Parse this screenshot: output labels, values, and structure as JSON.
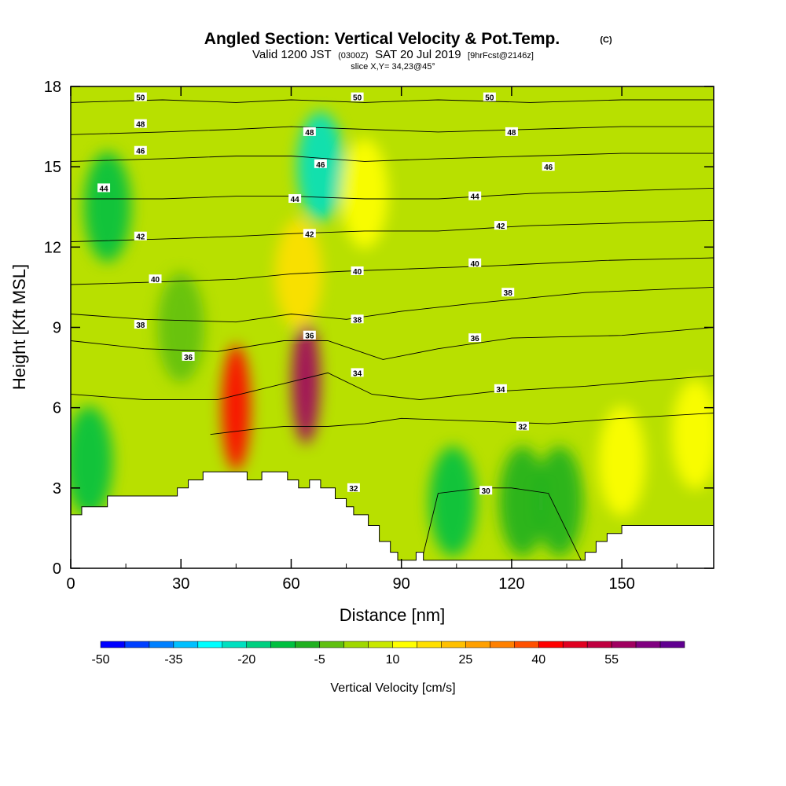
{
  "chart_data": {
    "type": "heatmap",
    "title": "Angled Section: Vertical Velocity & Pot.Temp.",
    "title_unit": "(C)",
    "subtitle_parts": [
      "Valid 1200 JST",
      "(0300Z)",
      "SAT 20 Jul 2019",
      "[9hrFcst@2146z]"
    ],
    "slice_label": "slice X,Y= 34,23@45°",
    "xlabel": "Distance [nm]",
    "ylabel": "Height [Kft MSL]",
    "xlim": [
      0,
      175
    ],
    "ylim": [
      0,
      18
    ],
    "x_ticks": [
      0,
      30,
      60,
      90,
      120,
      150
    ],
    "y_ticks": [
      0,
      3,
      6,
      9,
      12,
      15,
      18
    ],
    "colorbar": {
      "label": "Vertical Velocity [cm/s]",
      "ticks": [
        -50,
        -35,
        -20,
        -5,
        10,
        25,
        40,
        55
      ],
      "colors": [
        "#0000ff",
        "#0040ff",
        "#0080ff",
        "#00c0ff",
        "#00ffff",
        "#00e0c0",
        "#00d080",
        "#00c040",
        "#20b020",
        "#60c010",
        "#a0d800",
        "#c8e800",
        "#ffff00",
        "#ffe000",
        "#ffc000",
        "#ffa000",
        "#ff8000",
        "#ff5000",
        "#ff0000",
        "#e00020",
        "#c00040",
        "#a00060",
        "#800080",
        "#600090"
      ]
    },
    "wind_field_regions": [
      {
        "x": 10,
        "y": 13.5,
        "w": -15
      },
      {
        "x": 5,
        "y": 4.0,
        "w": -12
      },
      {
        "x": 30,
        "y": 9.0,
        "w": -5
      },
      {
        "x": 45,
        "y": 6.0,
        "w": 40
      },
      {
        "x": 64,
        "y": 7.0,
        "w": 55
      },
      {
        "x": 62,
        "y": 11.0,
        "w": 15
      },
      {
        "x": 68,
        "y": 15.0,
        "w": -25
      },
      {
        "x": 80,
        "y": 14.0,
        "w": 10
      },
      {
        "x": 104,
        "y": 2.5,
        "w": -12
      },
      {
        "x": 123,
        "y": 2.5,
        "w": -10
      },
      {
        "x": 133,
        "y": 2.5,
        "w": -10
      },
      {
        "x": 150,
        "y": 4.0,
        "w": 10
      },
      {
        "x": 170,
        "y": 5.0,
        "w": 10
      }
    ],
    "isentropes": [
      {
        "label": "30",
        "points": [
          [
            95,
            0
          ],
          [
            100,
            2.8
          ],
          [
            112,
            3.0
          ],
          [
            120,
            3.0
          ],
          [
            130,
            2.8
          ],
          [
            140,
            0
          ]
        ]
      },
      {
        "label": "32",
        "points": [
          [
            38,
            5.0
          ],
          [
            50,
            5.2
          ],
          [
            58,
            5.3
          ],
          [
            70,
            5.3
          ],
          [
            80,
            5.4
          ],
          [
            90,
            5.6
          ],
          [
            110,
            5.5
          ],
          [
            130,
            5.4
          ],
          [
            150,
            5.6
          ],
          [
            175,
            5.8
          ]
        ]
      },
      {
        "label": "34",
        "points": [
          [
            0,
            6.5
          ],
          [
            20,
            6.3
          ],
          [
            40,
            6.3
          ],
          [
            55,
            6.8
          ],
          [
            70,
            7.3
          ],
          [
            82,
            6.5
          ],
          [
            95,
            6.3
          ],
          [
            115,
            6.6
          ],
          [
            140,
            6.8
          ],
          [
            175,
            7.2
          ]
        ]
      },
      {
        "label": "36",
        "points": [
          [
            0,
            8.5
          ],
          [
            20,
            8.2
          ],
          [
            40,
            8.1
          ],
          [
            58,
            8.5
          ],
          [
            70,
            8.5
          ],
          [
            85,
            7.8
          ],
          [
            100,
            8.2
          ],
          [
            120,
            8.6
          ],
          [
            150,
            8.7
          ],
          [
            175,
            9.0
          ]
        ]
      },
      {
        "label": "38",
        "points": [
          [
            0,
            9.5
          ],
          [
            20,
            9.3
          ],
          [
            45,
            9.2
          ],
          [
            60,
            9.5
          ],
          [
            75,
            9.3
          ],
          [
            90,
            9.6
          ],
          [
            110,
            9.9
          ],
          [
            140,
            10.3
          ],
          [
            175,
            10.5
          ]
        ]
      },
      {
        "label": "40",
        "points": [
          [
            0,
            10.6
          ],
          [
            25,
            10.7
          ],
          [
            45,
            10.8
          ],
          [
            60,
            11.0
          ],
          [
            75,
            11.1
          ],
          [
            95,
            11.2
          ],
          [
            115,
            11.3
          ],
          [
            145,
            11.5
          ],
          [
            175,
            11.6
          ]
        ]
      },
      {
        "label": "42",
        "points": [
          [
            0,
            12.2
          ],
          [
            25,
            12.3
          ],
          [
            45,
            12.4
          ],
          [
            60,
            12.5
          ],
          [
            80,
            12.6
          ],
          [
            100,
            12.6
          ],
          [
            125,
            12.8
          ],
          [
            150,
            12.9
          ],
          [
            175,
            13.0
          ]
        ]
      },
      {
        "label": "44",
        "points": [
          [
            0,
            13.8
          ],
          [
            25,
            13.8
          ],
          [
            45,
            13.9
          ],
          [
            60,
            13.9
          ],
          [
            80,
            13.8
          ],
          [
            100,
            13.8
          ],
          [
            125,
            14.0
          ],
          [
            150,
            14.1
          ],
          [
            175,
            14.2
          ]
        ]
      },
      {
        "label": "46",
        "points": [
          [
            0,
            15.2
          ],
          [
            25,
            15.3
          ],
          [
            45,
            15.4
          ],
          [
            60,
            15.4
          ],
          [
            80,
            15.2
          ],
          [
            100,
            15.3
          ],
          [
            125,
            15.4
          ],
          [
            150,
            15.5
          ],
          [
            175,
            15.5
          ]
        ]
      },
      {
        "label": "48",
        "points": [
          [
            0,
            16.2
          ],
          [
            25,
            16.3
          ],
          [
            45,
            16.4
          ],
          [
            60,
            16.5
          ],
          [
            80,
            16.4
          ],
          [
            100,
            16.3
          ],
          [
            125,
            16.4
          ],
          [
            150,
            16.5
          ],
          [
            175,
            16.5
          ]
        ]
      },
      {
        "label": "50",
        "points": [
          [
            0,
            17.4
          ],
          [
            25,
            17.5
          ],
          [
            45,
            17.4
          ],
          [
            60,
            17.5
          ],
          [
            80,
            17.4
          ],
          [
            100,
            17.5
          ],
          [
            125,
            17.4
          ],
          [
            150,
            17.5
          ],
          [
            175,
            17.5
          ]
        ]
      }
    ],
    "contour_label_positions": [
      {
        "text": "50",
        "x": 19,
        "y": 17.6
      },
      {
        "text": "50",
        "x": 78,
        "y": 17.6
      },
      {
        "text": "50",
        "x": 114,
        "y": 17.6
      },
      {
        "text": "48",
        "x": 19,
        "y": 16.6
      },
      {
        "text": "48",
        "x": 65,
        "y": 16.3
      },
      {
        "text": "48",
        "x": 120,
        "y": 16.3
      },
      {
        "text": "46",
        "x": 19,
        "y": 15.6
      },
      {
        "text": "46",
        "x": 68,
        "y": 15.1
      },
      {
        "text": "46",
        "x": 130,
        "y": 15.0
      },
      {
        "text": "44",
        "x": 9,
        "y": 14.2
      },
      {
        "text": "44",
        "x": 61,
        "y": 13.8
      },
      {
        "text": "44",
        "x": 110,
        "y": 13.9
      },
      {
        "text": "42",
        "x": 19,
        "y": 12.4
      },
      {
        "text": "42",
        "x": 65,
        "y": 12.5
      },
      {
        "text": "42",
        "x": 117,
        "y": 12.8
      },
      {
        "text": "40",
        "x": 23,
        "y": 10.8
      },
      {
        "text": "40",
        "x": 78,
        "y": 11.1
      },
      {
        "text": "40",
        "x": 110,
        "y": 11.4
      },
      {
        "text": "38",
        "x": 19,
        "y": 9.1
      },
      {
        "text": "38",
        "x": 78,
        "y": 9.3
      },
      {
        "text": "38",
        "x": 119,
        "y": 10.3
      },
      {
        "text": "36",
        "x": 32,
        "y": 7.9
      },
      {
        "text": "36",
        "x": 65,
        "y": 8.7
      },
      {
        "text": "36",
        "x": 110,
        "y": 8.6
      },
      {
        "text": "34",
        "x": 78,
        "y": 7.3
      },
      {
        "text": "34",
        "x": 117,
        "y": 6.7
      },
      {
        "text": "32",
        "x": 77,
        "y": 3.0
      },
      {
        "text": "32",
        "x": 123,
        "y": 5.3
      },
      {
        "text": "30",
        "x": 113,
        "y": 2.9
      }
    ],
    "terrain_profile": [
      [
        0,
        2.0
      ],
      [
        3,
        2.0
      ],
      [
        3,
        2.3
      ],
      [
        10,
        2.3
      ],
      [
        10,
        2.7
      ],
      [
        29,
        2.7
      ],
      [
        29,
        3.0
      ],
      [
        32,
        3.0
      ],
      [
        32,
        3.3
      ],
      [
        36,
        3.3
      ],
      [
        36,
        3.6
      ],
      [
        48,
        3.6
      ],
      [
        48,
        3.3
      ],
      [
        52,
        3.3
      ],
      [
        52,
        3.6
      ],
      [
        59,
        3.6
      ],
      [
        59,
        3.3
      ],
      [
        62,
        3.3
      ],
      [
        62,
        3.0
      ],
      [
        65,
        3.0
      ],
      [
        65,
        3.3
      ],
      [
        68,
        3.3
      ],
      [
        68,
        3.0
      ],
      [
        72,
        3.0
      ],
      [
        72,
        2.6
      ],
      [
        75,
        2.6
      ],
      [
        75,
        2.3
      ],
      [
        77,
        2.3
      ],
      [
        77,
        2.0
      ],
      [
        81,
        2.0
      ],
      [
        81,
        1.6
      ],
      [
        84,
        1.6
      ],
      [
        84,
        1.0
      ],
      [
        87,
        1.0
      ],
      [
        87,
        0.6
      ],
      [
        89,
        0.6
      ],
      [
        89,
        0.3
      ],
      [
        94,
        0.3
      ],
      [
        94,
        0.6
      ],
      [
        96,
        0.6
      ],
      [
        96,
        0.3
      ],
      [
        140,
        0.3
      ],
      [
        140,
        0.6
      ],
      [
        143,
        0.6
      ],
      [
        143,
        1.0
      ],
      [
        146,
        1.0
      ],
      [
        146,
        1.3
      ],
      [
        150,
        1.3
      ],
      [
        150,
        1.6
      ],
      [
        162,
        1.6
      ],
      [
        162,
        1.6
      ],
      [
        175,
        1.6
      ]
    ]
  }
}
